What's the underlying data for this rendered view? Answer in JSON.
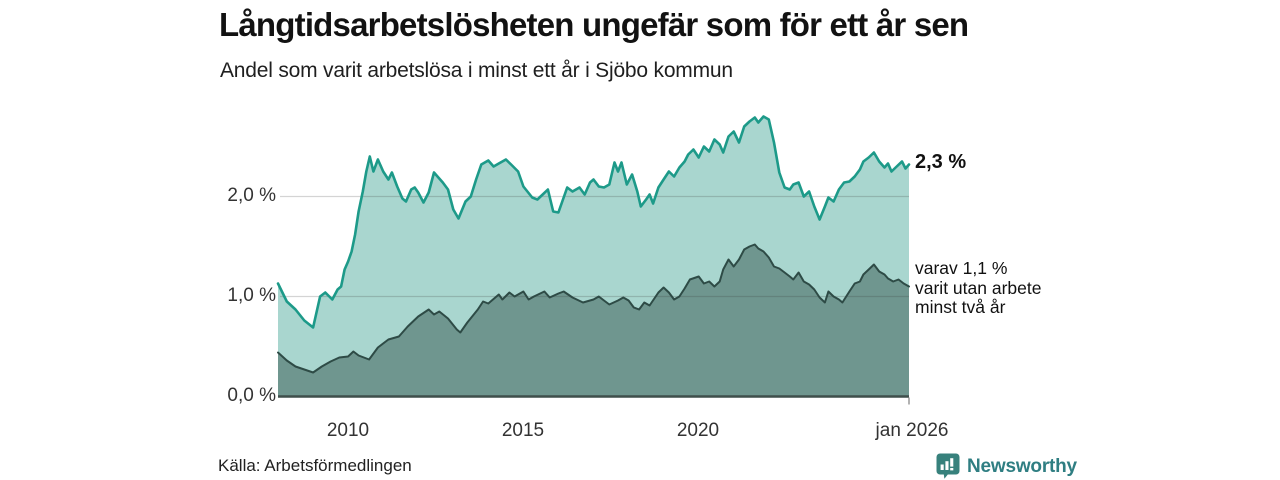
{
  "header": {
    "title": "Långtidsarbetslösheten ungefär som för ett år sen",
    "subtitle": "Andel som varit arbetslösa i minst ett år i Sjöbo kommun"
  },
  "chart_data": {
    "type": "area",
    "title": "Långtidsarbetslösheten ungefär som för ett år sen",
    "subtitle": "Andel som varit arbetslösa i minst ett år i Sjöbo kommun",
    "unit": "%",
    "xlim": [
      2008,
      2026
    ],
    "ylim": [
      0,
      2.82
    ],
    "grid": "horizontal",
    "y_ticks": [
      {
        "label": "2,0 %",
        "value": 2.0
      },
      {
        "label": "1,0 %",
        "value": 1.0
      },
      {
        "label": "0,0 %",
        "value": 0.0
      }
    ],
    "x_ticks": [
      {
        "label": "2010",
        "year": 2010
      },
      {
        "label": "2015",
        "year": 2015
      },
      {
        "label": "2020",
        "year": 2020
      },
      {
        "label": "jan 2026",
        "year": 2026
      }
    ],
    "series": [
      {
        "name": "Andel som varit arbetslösa minst ett år",
        "line_color": "#1d9a89",
        "fill_color": "#a9d6cf",
        "line_width": 2.6,
        "last_value_label": "2,3 %",
        "points": [
          [
            2008.0,
            1.13
          ],
          [
            2008.25,
            0.95
          ],
          [
            2008.5,
            0.87
          ],
          [
            2008.75,
            0.76
          ],
          [
            2009.0,
            0.69
          ],
          [
            2009.2,
            1.0
          ],
          [
            2009.35,
            1.04
          ],
          [
            2009.55,
            0.97
          ],
          [
            2009.7,
            1.07
          ],
          [
            2009.8,
            1.1
          ],
          [
            2009.9,
            1.27
          ],
          [
            2010.0,
            1.35
          ],
          [
            2010.1,
            1.45
          ],
          [
            2010.2,
            1.62
          ],
          [
            2010.3,
            1.85
          ],
          [
            2010.42,
            2.05
          ],
          [
            2010.52,
            2.25
          ],
          [
            2010.62,
            2.4
          ],
          [
            2010.72,
            2.25
          ],
          [
            2010.85,
            2.37
          ],
          [
            2011.0,
            2.25
          ],
          [
            2011.15,
            2.17
          ],
          [
            2011.25,
            2.24
          ],
          [
            2011.4,
            2.1
          ],
          [
            2011.55,
            1.98
          ],
          [
            2011.65,
            1.95
          ],
          [
            2011.8,
            2.07
          ],
          [
            2011.9,
            2.09
          ],
          [
            2012.0,
            2.04
          ],
          [
            2012.15,
            1.94
          ],
          [
            2012.3,
            2.04
          ],
          [
            2012.45,
            2.24
          ],
          [
            2012.55,
            2.2
          ],
          [
            2012.7,
            2.14
          ],
          [
            2012.85,
            2.07
          ],
          [
            2013.0,
            1.87
          ],
          [
            2013.15,
            1.78
          ],
          [
            2013.35,
            1.95
          ],
          [
            2013.5,
            2.0
          ],
          [
            2013.65,
            2.17
          ],
          [
            2013.8,
            2.32
          ],
          [
            2014.0,
            2.36
          ],
          [
            2014.15,
            2.3
          ],
          [
            2014.3,
            2.33
          ],
          [
            2014.5,
            2.37
          ],
          [
            2014.65,
            2.32
          ],
          [
            2014.85,
            2.25
          ],
          [
            2015.0,
            2.1
          ],
          [
            2015.25,
            1.99
          ],
          [
            2015.4,
            1.97
          ],
          [
            2015.55,
            2.02
          ],
          [
            2015.7,
            2.07
          ],
          [
            2015.85,
            1.85
          ],
          [
            2016.0,
            1.84
          ],
          [
            2016.25,
            2.09
          ],
          [
            2016.4,
            2.05
          ],
          [
            2016.6,
            2.09
          ],
          [
            2016.75,
            2.02
          ],
          [
            2016.9,
            2.14
          ],
          [
            2017.0,
            2.17
          ],
          [
            2017.15,
            2.1
          ],
          [
            2017.3,
            2.09
          ],
          [
            2017.45,
            2.12
          ],
          [
            2017.6,
            2.34
          ],
          [
            2017.7,
            2.25
          ],
          [
            2017.8,
            2.34
          ],
          [
            2017.95,
            2.12
          ],
          [
            2018.1,
            2.22
          ],
          [
            2018.25,
            2.05
          ],
          [
            2018.35,
            1.9
          ],
          [
            2018.5,
            1.97
          ],
          [
            2018.6,
            2.02
          ],
          [
            2018.7,
            1.93
          ],
          [
            2018.85,
            2.09
          ],
          [
            2019.0,
            2.17
          ],
          [
            2019.15,
            2.25
          ],
          [
            2019.3,
            2.2
          ],
          [
            2019.45,
            2.29
          ],
          [
            2019.6,
            2.35
          ],
          [
            2019.7,
            2.42
          ],
          [
            2019.85,
            2.47
          ],
          [
            2020.0,
            2.39
          ],
          [
            2020.15,
            2.5
          ],
          [
            2020.3,
            2.45
          ],
          [
            2020.45,
            2.57
          ],
          [
            2020.6,
            2.52
          ],
          [
            2020.7,
            2.44
          ],
          [
            2020.85,
            2.6
          ],
          [
            2021.0,
            2.65
          ],
          [
            2021.15,
            2.54
          ],
          [
            2021.3,
            2.7
          ],
          [
            2021.45,
            2.75
          ],
          [
            2021.6,
            2.79
          ],
          [
            2021.7,
            2.74
          ],
          [
            2021.85,
            2.8
          ],
          [
            2022.0,
            2.77
          ],
          [
            2022.15,
            2.54
          ],
          [
            2022.3,
            2.24
          ],
          [
            2022.45,
            2.09
          ],
          [
            2022.6,
            2.07
          ],
          [
            2022.7,
            2.12
          ],
          [
            2022.85,
            2.14
          ],
          [
            2023.0,
            2.0
          ],
          [
            2023.15,
            2.05
          ],
          [
            2023.3,
            1.9
          ],
          [
            2023.45,
            1.77
          ],
          [
            2023.6,
            1.9
          ],
          [
            2023.7,
            1.99
          ],
          [
            2023.85,
            1.95
          ],
          [
            2024.0,
            2.07
          ],
          [
            2024.15,
            2.14
          ],
          [
            2024.3,
            2.15
          ],
          [
            2024.45,
            2.2
          ],
          [
            2024.6,
            2.27
          ],
          [
            2024.7,
            2.35
          ],
          [
            2024.85,
            2.39
          ],
          [
            2025.0,
            2.44
          ],
          [
            2025.15,
            2.35
          ],
          [
            2025.3,
            2.29
          ],
          [
            2025.4,
            2.33
          ],
          [
            2025.5,
            2.25
          ],
          [
            2025.65,
            2.3
          ],
          [
            2025.8,
            2.35
          ],
          [
            2025.9,
            2.28
          ],
          [
            2026.0,
            2.32
          ]
        ]
      },
      {
        "name": "varav utan arbete minst två år",
        "line_color": "#2e4b46",
        "fill_color": "#6f968f",
        "line_width": 2,
        "last_value_label": "varav 1,1 %",
        "points": [
          [
            2008.0,
            0.44
          ],
          [
            2008.25,
            0.36
          ],
          [
            2008.5,
            0.3
          ],
          [
            2008.75,
            0.27
          ],
          [
            2009.0,
            0.24
          ],
          [
            2009.25,
            0.3
          ],
          [
            2009.5,
            0.35
          ],
          [
            2009.75,
            0.39
          ],
          [
            2010.0,
            0.4
          ],
          [
            2010.15,
            0.45
          ],
          [
            2010.3,
            0.41
          ],
          [
            2010.6,
            0.37
          ],
          [
            2010.85,
            0.49
          ],
          [
            2011.15,
            0.57
          ],
          [
            2011.45,
            0.6
          ],
          [
            2011.7,
            0.7
          ],
          [
            2012.0,
            0.8
          ],
          [
            2012.3,
            0.87
          ],
          [
            2012.45,
            0.82
          ],
          [
            2012.6,
            0.85
          ],
          [
            2012.85,
            0.78
          ],
          [
            2013.1,
            0.67
          ],
          [
            2013.2,
            0.64
          ],
          [
            2013.4,
            0.74
          ],
          [
            2013.7,
            0.87
          ],
          [
            2013.85,
            0.95
          ],
          [
            2014.0,
            0.93
          ],
          [
            2014.3,
            1.02
          ],
          [
            2014.4,
            0.97
          ],
          [
            2014.6,
            1.04
          ],
          [
            2014.75,
            1.0
          ],
          [
            2015.0,
            1.05
          ],
          [
            2015.15,
            0.97
          ],
          [
            2015.3,
            1.0
          ],
          [
            2015.6,
            1.05
          ],
          [
            2015.75,
            0.99
          ],
          [
            2016.0,
            1.03
          ],
          [
            2016.15,
            1.05
          ],
          [
            2016.4,
            0.99
          ],
          [
            2016.7,
            0.94
          ],
          [
            2017.0,
            0.97
          ],
          [
            2017.15,
            1.0
          ],
          [
            2017.3,
            0.96
          ],
          [
            2017.45,
            0.92
          ],
          [
            2017.7,
            0.96
          ],
          [
            2017.85,
            0.99
          ],
          [
            2018.0,
            0.96
          ],
          [
            2018.15,
            0.89
          ],
          [
            2018.3,
            0.87
          ],
          [
            2018.45,
            0.94
          ],
          [
            2018.6,
            0.91
          ],
          [
            2018.85,
            1.04
          ],
          [
            2019.0,
            1.09
          ],
          [
            2019.15,
            1.04
          ],
          [
            2019.3,
            0.97
          ],
          [
            2019.45,
            1.0
          ],
          [
            2019.6,
            1.08
          ],
          [
            2019.75,
            1.17
          ],
          [
            2020.0,
            1.2
          ],
          [
            2020.15,
            1.13
          ],
          [
            2020.3,
            1.15
          ],
          [
            2020.45,
            1.1
          ],
          [
            2020.6,
            1.15
          ],
          [
            2020.7,
            1.27
          ],
          [
            2020.85,
            1.37
          ],
          [
            2021.0,
            1.3
          ],
          [
            2021.15,
            1.37
          ],
          [
            2021.3,
            1.47
          ],
          [
            2021.45,
            1.5
          ],
          [
            2021.6,
            1.52
          ],
          [
            2021.7,
            1.48
          ],
          [
            2021.85,
            1.45
          ],
          [
            2022.0,
            1.39
          ],
          [
            2022.15,
            1.3
          ],
          [
            2022.3,
            1.28
          ],
          [
            2022.45,
            1.24
          ],
          [
            2022.6,
            1.2
          ],
          [
            2022.7,
            1.17
          ],
          [
            2022.85,
            1.24
          ],
          [
            2023.0,
            1.15
          ],
          [
            2023.15,
            1.12
          ],
          [
            2023.3,
            1.07
          ],
          [
            2023.45,
            0.99
          ],
          [
            2023.6,
            0.94
          ],
          [
            2023.7,
            1.05
          ],
          [
            2023.85,
            1.0
          ],
          [
            2024.0,
            0.97
          ],
          [
            2024.1,
            0.94
          ],
          [
            2024.3,
            1.05
          ],
          [
            2024.45,
            1.13
          ],
          [
            2024.6,
            1.15
          ],
          [
            2024.7,
            1.22
          ],
          [
            2024.85,
            1.27
          ],
          [
            2025.0,
            1.32
          ],
          [
            2025.15,
            1.25
          ],
          [
            2025.3,
            1.22
          ],
          [
            2025.4,
            1.18
          ],
          [
            2025.55,
            1.15
          ],
          [
            2025.7,
            1.17
          ],
          [
            2025.85,
            1.13
          ],
          [
            2026.0,
            1.1
          ]
        ]
      }
    ],
    "annotations": {
      "top": "2,3 %",
      "bottom_lines": [
        "varav 1,1 %",
        "varit utan arbete",
        "minst två år"
      ]
    },
    "colors": {
      "gridline": "rgba(60,60,60,0.22)",
      "axis": "#3f4f4b",
      "tick": "#999999"
    }
  },
  "footer": {
    "source": "Källa: Arbetsförmedlingen"
  },
  "branding": {
    "logo_text": "Newsworthy",
    "logo_color": "#2f7e82",
    "icon_color": "#37817c"
  }
}
